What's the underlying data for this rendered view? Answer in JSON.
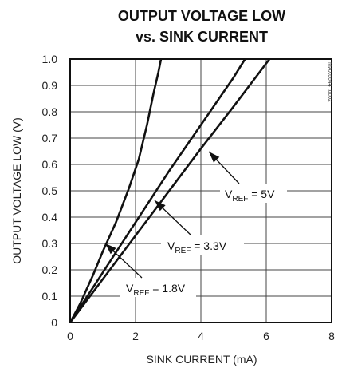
{
  "chart_data": {
    "type": "line",
    "title_line1": "OUTPUT VOLTAGE LOW",
    "title_line2": "vs. SINK CURRENT",
    "xlabel": "SINK CURRENT (mA)",
    "ylabel": "OUTPUT VOLTAGE LOW (V)",
    "xlim": [
      0,
      8
    ],
    "ylim": [
      0,
      1.0
    ],
    "x_ticks": [
      "0",
      "2",
      "4",
      "6",
      "8"
    ],
    "y_ticks": [
      "0",
      "0.1",
      "0.2",
      "0.3",
      "0.4",
      "0.5",
      "0.6",
      "0.7",
      "0.8",
      "0.9",
      "1.0"
    ],
    "grid": true,
    "watermark": "MAX6644 toc02",
    "series": [
      {
        "name": "VREF = 1.8V",
        "label_main": "V",
        "label_sub": "REF",
        "label_rest": " = 1.8V",
        "x": [
          0,
          0.3,
          0.7,
          1.0,
          1.4,
          1.8,
          2.1,
          2.35,
          2.55,
          2.7,
          2.78
        ],
        "y": [
          0,
          0.07,
          0.18,
          0.27,
          0.38,
          0.51,
          0.62,
          0.75,
          0.87,
          0.95,
          1.0
        ]
      },
      {
        "name": "VREF = 3.3V",
        "label_main": "V",
        "label_sub": "REF",
        "label_rest": " = 3.3V",
        "x": [
          0,
          1.0,
          2.0,
          3.0,
          4.0,
          5.0,
          5.35
        ],
        "y": [
          0,
          0.19,
          0.38,
          0.57,
          0.75,
          0.93,
          1.0
        ]
      },
      {
        "name": "VREF = 5V",
        "label_main": "V",
        "label_sub": "REF",
        "label_rest": " = 5V",
        "x": [
          0,
          1.0,
          2.0,
          3.0,
          4.0,
          5.0,
          6.1
        ],
        "y": [
          0,
          0.165,
          0.33,
          0.495,
          0.66,
          0.82,
          1.0
        ]
      }
    ]
  }
}
